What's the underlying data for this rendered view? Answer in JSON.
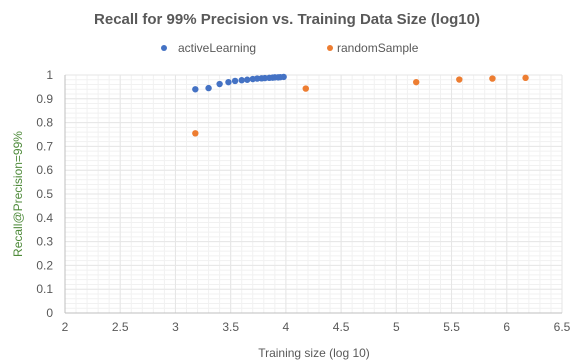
{
  "chart_data": {
    "type": "scatter",
    "title": "Recall for 99% Precision vs. Training Data Size (log10)",
    "xlabel": "Training size (log 10)",
    "ylabel": "Recall@Precision=99%",
    "xlim": [
      2,
      6.5
    ],
    "ylim": [
      0,
      1
    ],
    "x_ticks": [
      "2",
      "2.5",
      "3",
      "3.5",
      "4",
      "4.5",
      "5",
      "5.5",
      "6",
      "6.5"
    ],
    "y_ticks": [
      "0",
      "0.1",
      "0.2",
      "0.3",
      "0.4",
      "0.5",
      "0.6",
      "0.7",
      "0.8",
      "0.9",
      "1"
    ],
    "grid": true,
    "legend_position": "top",
    "series": [
      {
        "name": "activeLearning",
        "color": "#4472c4",
        "points": [
          {
            "x": 3.18,
            "y": 0.94
          },
          {
            "x": 3.3,
            "y": 0.945
          },
          {
            "x": 3.4,
            "y": 0.962
          },
          {
            "x": 3.48,
            "y": 0.97
          },
          {
            "x": 3.54,
            "y": 0.975
          },
          {
            "x": 3.6,
            "y": 0.978
          },
          {
            "x": 3.65,
            "y": 0.98
          },
          {
            "x": 3.7,
            "y": 0.983
          },
          {
            "x": 3.74,
            "y": 0.985
          },
          {
            "x": 3.78,
            "y": 0.986
          },
          {
            "x": 3.81,
            "y": 0.987
          },
          {
            "x": 3.85,
            "y": 0.988
          },
          {
            "x": 3.88,
            "y": 0.989
          },
          {
            "x": 3.9,
            "y": 0.99
          },
          {
            "x": 3.93,
            "y": 0.99
          },
          {
            "x": 3.95,
            "y": 0.991
          },
          {
            "x": 3.98,
            "y": 0.992
          }
        ]
      },
      {
        "name": "randomSample",
        "color": "#ed7d31",
        "points": [
          {
            "x": 3.18,
            "y": 0.755
          },
          {
            "x": 4.18,
            "y": 0.943
          },
          {
            "x": 5.18,
            "y": 0.97
          },
          {
            "x": 5.57,
            "y": 0.981
          },
          {
            "x": 5.87,
            "y": 0.985
          },
          {
            "x": 6.17,
            "y": 0.988
          }
        ]
      }
    ]
  }
}
